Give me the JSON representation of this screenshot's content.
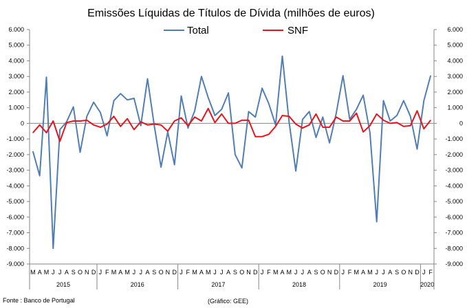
{
  "chart_data": {
    "type": "line",
    "title": "Emissões Líquidas de Títulos de Dívida (milhões de euros)",
    "ylim": [
      -9000,
      6000
    ],
    "y_ticks": [
      "6.000",
      "5.000",
      "4.000",
      "3.000",
      "2.000",
      "1.000",
      "0",
      "-1.000",
      "-2.000",
      "-3.000",
      "-4.000",
      "-5.000",
      "-6.000",
      "-7.000",
      "-8.000",
      "-9.000"
    ],
    "month_labels": [
      "M",
      "A",
      "M",
      "J",
      "J",
      "A",
      "S",
      "O",
      "N",
      "D",
      "J",
      "F",
      "M",
      "A",
      "M",
      "J",
      "J",
      "A",
      "S",
      "O",
      "N",
      "D",
      "J",
      "F",
      "M",
      "A",
      "M",
      "J",
      "J",
      "A",
      "S",
      "O",
      "N",
      "D",
      "J",
      "F",
      "M",
      "A",
      "M",
      "J",
      "J",
      "A",
      "S",
      "O",
      "N",
      "D",
      "J",
      "F",
      "M",
      "A",
      "M",
      "J",
      "J",
      "A",
      "S",
      "O",
      "N",
      "D",
      "J",
      "F"
    ],
    "year_labels": [
      {
        "label": "2015",
        "start": 0,
        "end": 10
      },
      {
        "label": "2016",
        "start": 10,
        "end": 22
      },
      {
        "label": "2017",
        "start": 22,
        "end": 34
      },
      {
        "label": "2018",
        "start": 34,
        "end": 46
      },
      {
        "label": "2019",
        "start": 46,
        "end": 58
      },
      {
        "label": "2020",
        "start": 58,
        "end": 60
      }
    ],
    "series": [
      {
        "name": "Total",
        "color": "#4f7eb5",
        "values": [
          -1800,
          -3350,
          2950,
          -8000,
          -400,
          100,
          1050,
          -1850,
          450,
          1350,
          700,
          -800,
          1450,
          1900,
          1500,
          1600,
          -150,
          2850,
          -150,
          -2800,
          -550,
          -2650,
          1750,
          -300,
          800,
          3000,
          1650,
          500,
          900,
          1950,
          -2000,
          -2850,
          750,
          400,
          2250,
          1250,
          -100,
          4300,
          100,
          -3050,
          250,
          750,
          -900,
          400,
          -1250,
          650,
          3050,
          250,
          900,
          1800,
          -600,
          -6300,
          1450,
          150,
          500,
          1450,
          450,
          -1650,
          1450,
          3050
        ]
      },
      {
        "name": "SNF",
        "color": "#e8141b",
        "values": [
          -600,
          -100,
          -600,
          150,
          -1150,
          50,
          150,
          150,
          200,
          -100,
          -250,
          -50,
          450,
          -200,
          300,
          -400,
          100,
          -100,
          -50,
          -100,
          -500,
          150,
          350,
          -150,
          400,
          150,
          950,
          50,
          600,
          0,
          0,
          200,
          200,
          -850,
          -850,
          -700,
          -200,
          500,
          450,
          -50,
          -300,
          -100,
          600,
          -250,
          -250,
          400,
          150,
          150,
          650,
          -550,
          -150,
          600,
          200,
          0,
          50,
          -200,
          -150,
          800,
          -350,
          200
        ]
      }
    ]
  },
  "legend": [
    {
      "name": "Total",
      "color": "#4f7eb5"
    },
    {
      "name": "SNF",
      "color": "#e8141b"
    }
  ],
  "footer": {
    "source": "Fonte : Banco de Portugal",
    "credit": "(Gráfico: GEE)"
  }
}
